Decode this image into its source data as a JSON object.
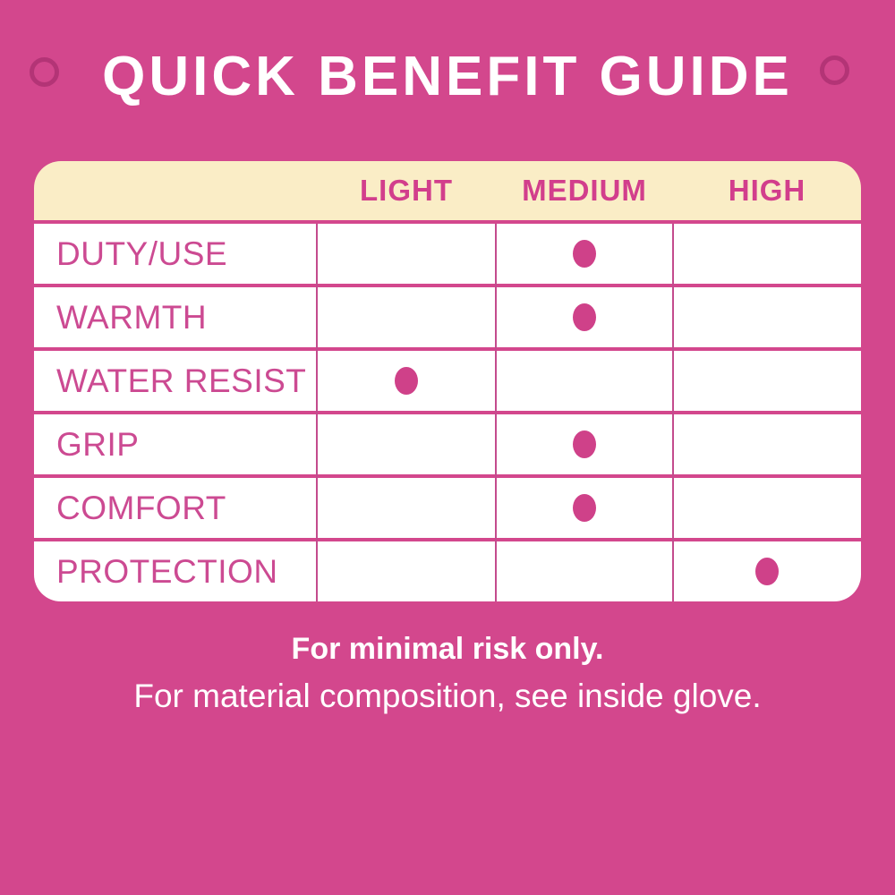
{
  "chart_data": {
    "type": "table",
    "title": "QUICK BENEFIT GUIDE",
    "columns": [
      "LIGHT",
      "MEDIUM",
      "HIGH"
    ],
    "rows": [
      {
        "label": "DUTY/USE",
        "level": "MEDIUM"
      },
      {
        "label": "WARMTH",
        "level": "MEDIUM"
      },
      {
        "label": "WATER RESIST",
        "level": "LIGHT"
      },
      {
        "label": "GRIP",
        "level": "MEDIUM"
      },
      {
        "label": "COMFORT",
        "level": "MEDIUM"
      },
      {
        "label": "PROTECTION",
        "level": "HIGH"
      }
    ],
    "layout_hints": {
      "header_band": "cream rounded top",
      "marker": "pink dot in matching level column",
      "grid": "thin pink vertical lines, pink gaps between rows"
    }
  },
  "footer": {
    "line1": "For minimal risk only.",
    "line2": "For material composition, see inside glove."
  },
  "icons": {
    "left_ring": "ring-icon",
    "right_ring": "ring-icon"
  },
  "colors": {
    "background": "#d3478d",
    "header_band": "#faedc6",
    "pink_text": "#cc4a92",
    "column_header_text": "#d23e8c",
    "dot": "#cf4189",
    "grid_line": "#c34b8d",
    "ring_outline": "#ab3071",
    "title_text": "#ffffff",
    "footer_text": "#ffffff",
    "row_background": "#ffffff"
  }
}
